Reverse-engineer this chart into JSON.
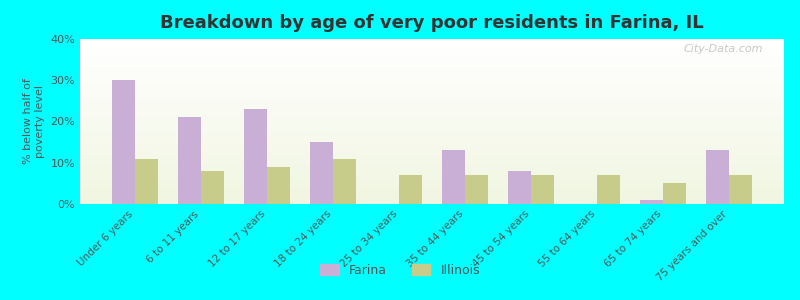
{
  "title": "Breakdown by age of very poor residents in Farina, IL",
  "ylabel": "% below half of\npoverty level",
  "categories": [
    "Under 6 years",
    "6 to 11 years",
    "12 to 17 years",
    "18 to 24 years",
    "25 to 34 years",
    "35 to 44 years",
    "45 to 54 years",
    "55 to 64 years",
    "65 to 74 years",
    "75 years and over"
  ],
  "farina_values": [
    30,
    21,
    23,
    15,
    0,
    13,
    8,
    0,
    1,
    13
  ],
  "illinois_values": [
    11,
    8,
    9,
    11,
    7,
    7,
    7,
    7,
    5,
    7
  ],
  "farina_color": "#c9aed6",
  "illinois_color": "#c8cc8a",
  "background_color": "#00ffff",
  "ylim": [
    0,
    40
  ],
  "yticks": [
    0,
    10,
    20,
    30,
    40
  ],
  "ytick_labels": [
    "0%",
    "10%",
    "20%",
    "30%",
    "40%"
  ],
  "bar_width": 0.35,
  "title_fontsize": 13,
  "tick_color": "#555555",
  "legend_labels": [
    "Farina",
    "Illinois"
  ],
  "watermark": "City-Data.com"
}
